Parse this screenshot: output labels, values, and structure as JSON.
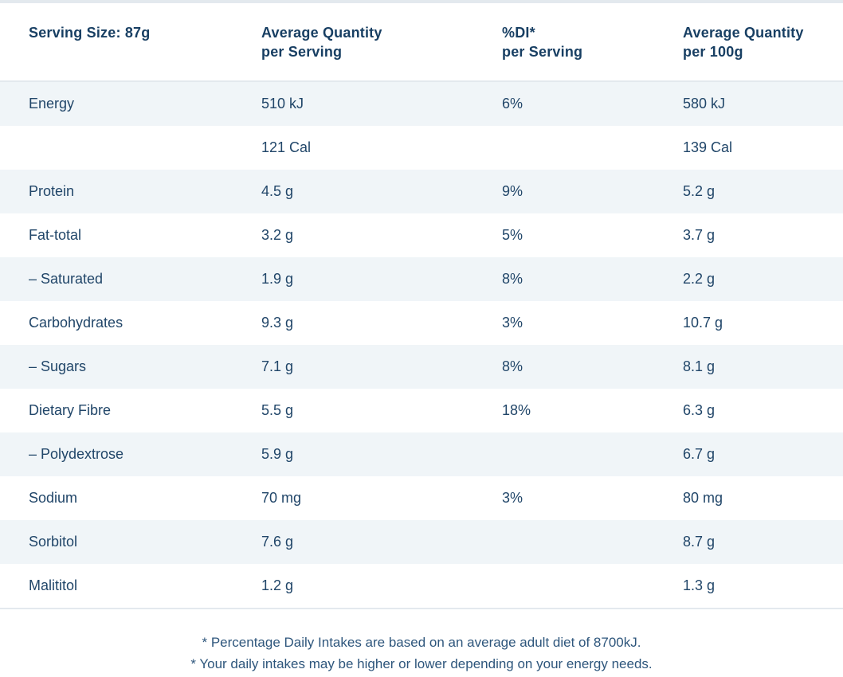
{
  "colors": {
    "header_text": "#183f63",
    "body_text": "#214669",
    "footnote_text": "#2e567c",
    "row_tint": "#f0f5f8",
    "rule": "#e3e9ee",
    "background": "#ffffff"
  },
  "table": {
    "header": {
      "serving_size": "Serving Size: 87g",
      "avg_qty_serving_line1": "Average Quantity",
      "avg_qty_serving_line2": "per Serving",
      "di_line1": "%DI*",
      "di_line2": "per Serving",
      "avg_qty_100g_line1": "Average Quantity",
      "avg_qty_100g_line2": "per 100g"
    },
    "rows": [
      {
        "label": "Energy",
        "per_serving": "510 kJ",
        "di_per_serving": "6%",
        "per_100g": "580 kJ"
      },
      {
        "label": "",
        "per_serving": "121 Cal",
        "di_per_serving": "",
        "per_100g": "139 Cal"
      },
      {
        "label": "Protein",
        "per_serving": "4.5 g",
        "di_per_serving": "9%",
        "per_100g": "5.2 g"
      },
      {
        "label": "Fat-total",
        "per_serving": "3.2 g",
        "di_per_serving": "5%",
        "per_100g": "3.7 g"
      },
      {
        "label": "– Saturated",
        "per_serving": "1.9 g",
        "di_per_serving": "8%",
        "per_100g": "2.2 g"
      },
      {
        "label": "Carbohydrates",
        "per_serving": "9.3 g",
        "di_per_serving": "3%",
        "per_100g": "10.7 g"
      },
      {
        "label": "– Sugars",
        "per_serving": "7.1 g",
        "di_per_serving": "8%",
        "per_100g": "8.1 g"
      },
      {
        "label": "Dietary Fibre",
        "per_serving": "5.5 g",
        "di_per_serving": "18%",
        "per_100g": "6.3 g"
      },
      {
        "label": "– Polydextrose",
        "per_serving": "5.9 g",
        "di_per_serving": "",
        "per_100g": "6.7 g"
      },
      {
        "label": "Sodium",
        "per_serving": "70 mg",
        "di_per_serving": "3%",
        "per_100g": "80 mg"
      },
      {
        "label": "Sorbitol",
        "per_serving": "7.6 g",
        "di_per_serving": "",
        "per_100g": "8.7 g"
      },
      {
        "label": "Malititol",
        "per_serving": "1.2 g",
        "di_per_serving": "",
        "per_100g": "1.3 g"
      }
    ]
  },
  "footnotes": [
    "* Percentage Daily Intakes are based on an average adult diet of 8700kJ.",
    "* Your daily intakes may be higher or lower depending on your energy needs."
  ]
}
